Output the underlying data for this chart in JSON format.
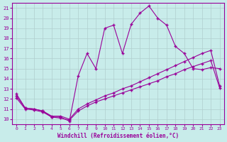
{
  "xlabel": "Windchill (Refroidissement éolien,°C)",
  "background_color": "#c8ecea",
  "line_color": "#990099",
  "grid_color": "#b0cece",
  "xlim": [
    -0.5,
    23.5
  ],
  "ylim": [
    9.5,
    21.5
  ],
  "yticks": [
    10,
    11,
    12,
    13,
    14,
    15,
    16,
    17,
    18,
    19,
    20,
    21
  ],
  "xticks": [
    0,
    1,
    2,
    3,
    4,
    5,
    6,
    7,
    8,
    9,
    10,
    11,
    12,
    13,
    14,
    15,
    16,
    17,
    18,
    19,
    20,
    21,
    22,
    23
  ],
  "series1_x": [
    0,
    1,
    2,
    3,
    4,
    5,
    6,
    7,
    8,
    9,
    10,
    11,
    12,
    13,
    14,
    15,
    16,
    17,
    18,
    19,
    20,
    21,
    22,
    23
  ],
  "series1_y": [
    12.5,
    11.1,
    11.0,
    10.8,
    10.2,
    10.2,
    9.8,
    14.3,
    16.5,
    15.0,
    19.0,
    19.3,
    16.5,
    19.4,
    20.5,
    21.2,
    20.0,
    19.3,
    17.2,
    16.5,
    15.0,
    14.9,
    15.1,
    15.0
  ],
  "series2_x": [
    0,
    1,
    2,
    3,
    4,
    5,
    6,
    7,
    8,
    9,
    10,
    11,
    12,
    13,
    14,
    15,
    16,
    17,
    18,
    19,
    20,
    21,
    22,
    23
  ],
  "series2_y": [
    12.3,
    11.1,
    11.0,
    10.8,
    10.3,
    10.3,
    10.0,
    11.0,
    11.5,
    11.9,
    12.3,
    12.6,
    13.0,
    13.3,
    13.7,
    14.1,
    14.5,
    14.9,
    15.3,
    15.7,
    16.1,
    16.5,
    16.8,
    13.3
  ],
  "series3_x": [
    0,
    1,
    2,
    3,
    4,
    5,
    6,
    7,
    8,
    9,
    10,
    11,
    12,
    13,
    14,
    15,
    16,
    17,
    18,
    19,
    20,
    21,
    22,
    23
  ],
  "series3_y": [
    12.1,
    11.0,
    10.9,
    10.7,
    10.2,
    10.1,
    9.9,
    10.8,
    11.3,
    11.7,
    12.0,
    12.3,
    12.6,
    12.9,
    13.2,
    13.5,
    13.8,
    14.2,
    14.5,
    14.9,
    15.2,
    15.5,
    15.8,
    13.1
  ]
}
